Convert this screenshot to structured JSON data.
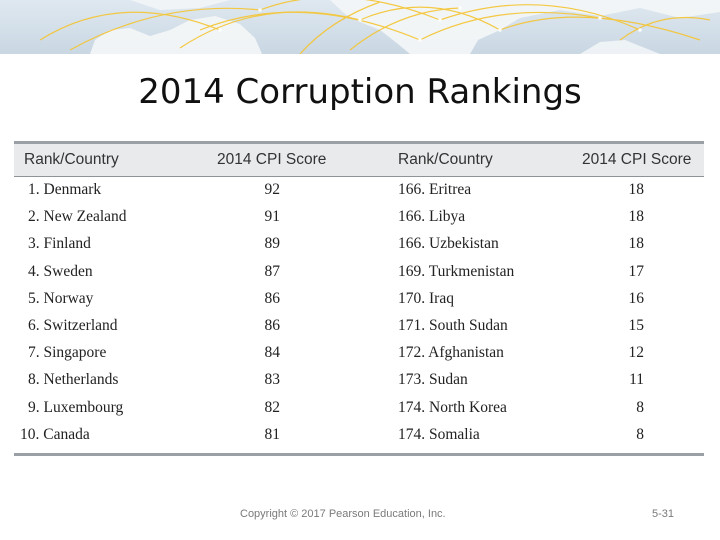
{
  "slide": {
    "title": "2014 Corruption Rankings",
    "copyright": "Copyright © 2017 Pearson Education, Inc.",
    "page_number": "5-31"
  },
  "table": {
    "headers": [
      "Rank/Country",
      "2014 CPI Score",
      "Rank/Country",
      "2014 CPI Score"
    ],
    "rows": [
      {
        "left_rank_country": "1. Denmark",
        "left_score": "92",
        "right_rank_country": "166. Eritrea",
        "right_score": "18"
      },
      {
        "left_rank_country": "2. New Zealand",
        "left_score": "91",
        "right_rank_country": "166. Libya",
        "right_score": "18"
      },
      {
        "left_rank_country": "3. Finland",
        "left_score": "89",
        "right_rank_country": "166. Uzbekistan",
        "right_score": "18"
      },
      {
        "left_rank_country": "4. Sweden",
        "left_score": "87",
        "right_rank_country": "169. Turkmenistan",
        "right_score": "17"
      },
      {
        "left_rank_country": "5. Norway",
        "left_score": "86",
        "right_rank_country": "170. Iraq",
        "right_score": "16"
      },
      {
        "left_rank_country": "6. Switzerland",
        "left_score": "86",
        "right_rank_country": "171. South Sudan",
        "right_score": "15"
      },
      {
        "left_rank_country": "7. Singapore",
        "left_score": "84",
        "right_rank_country": "172. Afghanistan",
        "right_score": "12"
      },
      {
        "left_rank_country": "8. Netherlands",
        "left_score": "83",
        "right_rank_country": "173. Sudan",
        "right_score": "11"
      },
      {
        "left_rank_country": "9. Luxembourg",
        "left_score": "82",
        "right_rank_country": "174. North Korea",
        "right_score": "8"
      },
      {
        "left_rank_country": "10. Canada",
        "left_score": "81",
        "right_rank_country": "174. Somalia",
        "right_score": "8"
      }
    ]
  },
  "colors": {
    "banner_bg": "#c9d7e3",
    "map_land": "#f2f5f7",
    "map_arcs": "#f5c430",
    "header_band": "#e8eaec",
    "rules": "#9aa0a6"
  },
  "icons": [
    "world-map-banner"
  ]
}
